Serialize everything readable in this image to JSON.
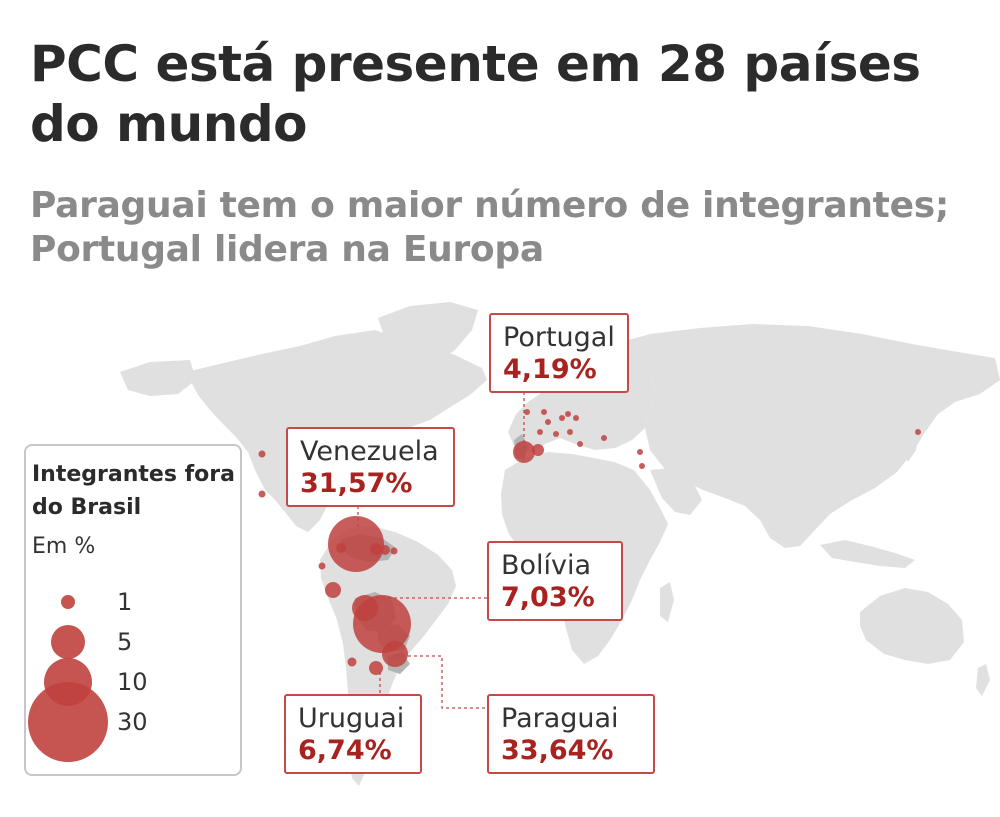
{
  "header": {
    "title": "PCC está presente em 28 países do mundo",
    "subtitle": "Paraguai tem o maior número de integrantes; Portugal lidera na Europa"
  },
  "map": {
    "marker_color": "#c0413e",
    "highlight_color": "#b4b4b4",
    "land_color": "#e0e0e0",
    "callouts": [
      {
        "id": "portugal",
        "country": "Portugal",
        "value_label": "4,19%",
        "value": 4.19
      },
      {
        "id": "venezuela",
        "country": "Venezuela",
        "value_label": "31,57%",
        "value": 31.57
      },
      {
        "id": "bolivia",
        "country": "Bolívia",
        "value_label": "7,03%",
        "value": 7.03
      },
      {
        "id": "uruguai",
        "country": "Uruguai",
        "value_label": "6,74%",
        "value": 6.74
      },
      {
        "id": "paraguai",
        "country": "Paraguai",
        "value_label": "33,64%",
        "value": 33.64
      }
    ]
  },
  "legend": {
    "title": "Integrantes fora do Brasil",
    "unit": "Em %",
    "sizes": [
      {
        "value": 1,
        "label": "1"
      },
      {
        "value": 5,
        "label": "5"
      },
      {
        "value": 10,
        "label": "10"
      },
      {
        "value": 30,
        "label": "30"
      }
    ]
  }
}
